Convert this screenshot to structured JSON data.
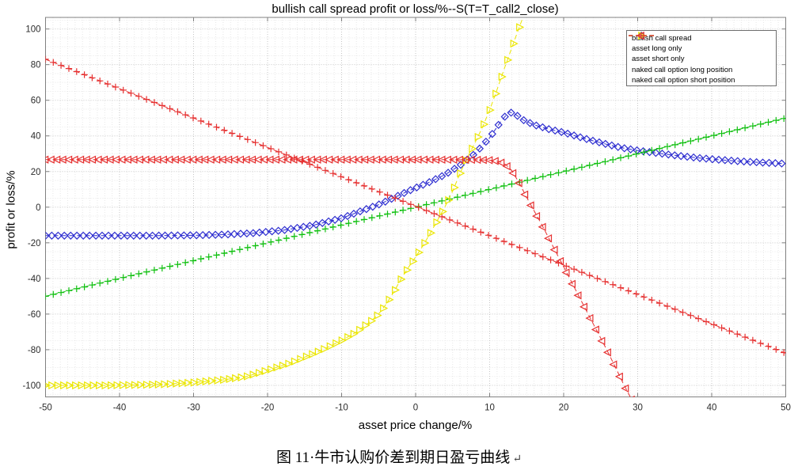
{
  "caption": {
    "text": "图 11·牛市认购价差到期日盈亏曲线",
    "mark": "↵"
  },
  "chart_data": {
    "type": "line",
    "title": "bullish call spread profit or loss/%--S(T=T_call2_close)",
    "xlabel": "asset price change/%",
    "ylabel": "profit or loss/%",
    "xlim": [
      -50,
      50
    ],
    "ylim": [
      -106.5,
      106.5
    ],
    "x_ticks": [
      -50,
      -40,
      -30,
      -20,
      -10,
      0,
      10,
      20,
      30,
      40,
      50
    ],
    "y_ticks": [
      -100,
      -80,
      -60,
      -40,
      -20,
      0,
      20,
      40,
      60,
      80,
      100
    ],
    "grid": "dotted major + dotted minor",
    "minor_step_x": 1,
    "minor_step_y": 5,
    "legend_position": "top-right",
    "colors": {
      "axis": "#808080",
      "tick_label": "#2b2b2b",
      "grid_major": "#c6c6c6",
      "grid_minor": "#e7e7e7",
      "legend_border": "#6e6e6e"
    },
    "series": [
      {
        "name": "bullish call spread",
        "color": "#2e2ed0",
        "marker": "diamond",
        "line_style": "dashed",
        "marker_step": 0.85,
        "points": [
          [
            -50,
            -16
          ],
          [
            -36,
            -16
          ],
          [
            -30,
            -15.8
          ],
          [
            -26,
            -15.4
          ],
          [
            -22,
            -14.6
          ],
          [
            -18,
            -13
          ],
          [
            -14,
            -10.3
          ],
          [
            -10,
            -6.2
          ],
          [
            -7,
            -1.6
          ],
          [
            -5,
            1.4
          ],
          [
            -3,
            5.2
          ],
          [
            -1,
            9
          ],
          [
            0,
            10.8
          ],
          [
            2,
            14.3
          ],
          [
            4,
            18.3
          ],
          [
            6,
            23.5
          ],
          [
            8,
            30
          ],
          [
            10,
            39
          ],
          [
            11.5,
            48
          ],
          [
            12.6,
            53.5
          ],
          [
            13.4,
            52.3
          ],
          [
            14.5,
            49
          ],
          [
            16,
            46.2
          ],
          [
            18,
            43.8
          ],
          [
            20,
            41.9
          ],
          [
            22,
            39.5
          ],
          [
            24,
            37.2
          ],
          [
            26,
            35.1
          ],
          [
            28,
            33.2
          ],
          [
            30,
            31.8
          ],
          [
            32,
            30.7
          ],
          [
            35,
            29.1
          ],
          [
            38,
            27.7
          ],
          [
            41,
            26.6
          ],
          [
            44,
            25.7
          ],
          [
            47,
            25
          ],
          [
            50,
            24.4
          ]
        ]
      },
      {
        "name": "asset long only",
        "color": "#10c010",
        "marker": "plus",
        "line_style": "dashed",
        "marker_step": 1.05,
        "points": [
          [
            -50,
            -50
          ],
          [
            50,
            50
          ]
        ]
      },
      {
        "name": "asset short only",
        "color": "#e63030",
        "marker": "plus",
        "line_style": "dashed",
        "marker_step": 1.05,
        "points": [
          [
            -50,
            83
          ],
          [
            50,
            -82
          ]
        ]
      },
      {
        "name": "naked call option long position",
        "color": "#ebe600",
        "marker": "triangle-right",
        "line_style": "dashed",
        "marker_step": 0.8,
        "points": [
          [
            -50,
            -100
          ],
          [
            -42,
            -100
          ],
          [
            -38,
            -99.8
          ],
          [
            -34,
            -99.4
          ],
          [
            -30,
            -98.4
          ],
          [
            -26,
            -96.9
          ],
          [
            -23,
            -95.2
          ],
          [
            -20,
            -91.5
          ],
          [
            -17,
            -87.6
          ],
          [
            -14,
            -82.5
          ],
          [
            -12,
            -78.9
          ],
          [
            -10,
            -74.8
          ],
          [
            -8,
            -70.1
          ],
          [
            -6,
            -63.8
          ],
          [
            -5,
            -60
          ],
          [
            -4,
            -54.5
          ],
          [
            -3,
            -48
          ],
          [
            -2,
            -40.5
          ],
          [
            -1,
            -34
          ],
          [
            0,
            -28
          ],
          [
            1,
            -21.5
          ],
          [
            2,
            -14.5
          ],
          [
            3,
            -7
          ],
          [
            4,
            0.5
          ],
          [
            5,
            9
          ],
          [
            6,
            19
          ],
          [
            7,
            28
          ],
          [
            8,
            36
          ],
          [
            9,
            44.5
          ],
          [
            10,
            54.5
          ],
          [
            11,
            66
          ],
          [
            12,
            78
          ],
          [
            13,
            89.5
          ],
          [
            14,
            101
          ],
          [
            14.6,
            107.5
          ]
        ]
      },
      {
        "name": "naked call option short position",
        "color": "#e63030",
        "marker": "triangle-left",
        "line_style": "dashed",
        "marker_step": 0.8,
        "points": [
          [
            -50,
            26.7
          ],
          [
            0,
            26.7
          ],
          [
            8,
            26.6
          ],
          [
            10,
            26.4
          ],
          [
            11.3,
            25.6
          ],
          [
            12.2,
            23.8
          ],
          [
            13,
            20.5
          ],
          [
            14,
            13.5
          ],
          [
            15,
            5.5
          ],
          [
            16,
            -2
          ],
          [
            17,
            -9.5
          ],
          [
            18,
            -17.5
          ],
          [
            19,
            -25.5
          ],
          [
            20,
            -33.5
          ],
          [
            21,
            -41.5
          ],
          [
            22,
            -49.5
          ],
          [
            23,
            -57.5
          ],
          [
            24,
            -65.5
          ],
          [
            25,
            -73.5
          ],
          [
            26,
            -81.5
          ],
          [
            27,
            -90
          ],
          [
            28,
            -98.5
          ],
          [
            29,
            -106.5
          ],
          [
            29.6,
            -111
          ]
        ]
      }
    ]
  }
}
